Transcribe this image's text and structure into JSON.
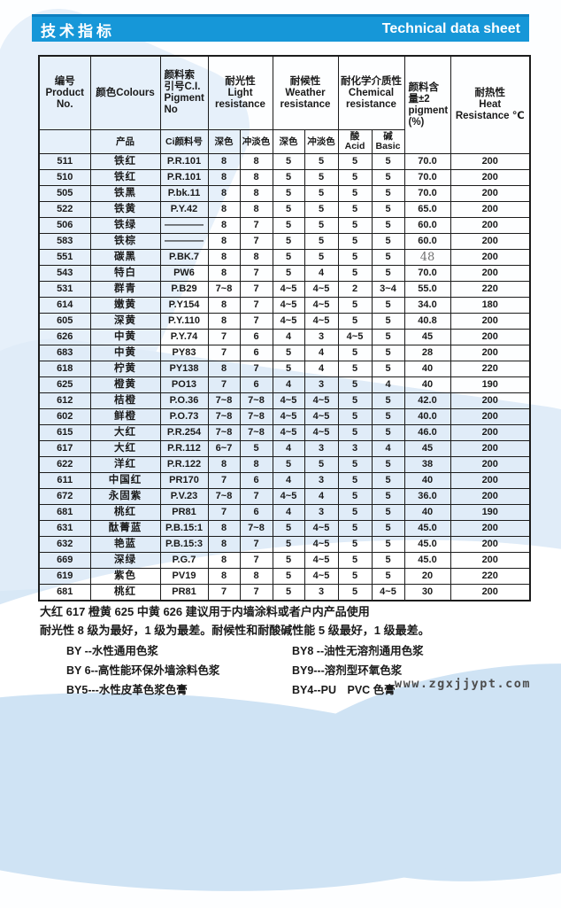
{
  "header": {
    "title_zh": "技术指标",
    "title_en": "Technical data sheet"
  },
  "colors": {
    "accent": "#1697d8",
    "accent_dark": "#0d7fc0",
    "swoosh_light": "#e0ecf8",
    "swoosh_deep": "#cfe3f4"
  },
  "table": {
    "head": {
      "row1": {
        "product_no": "编号\nProduct No.",
        "colours": "颜色Colours",
        "ci": "颜料索\n引号C.I.\nPigment\nNo",
        "light": "耐光性\nLight\nresistance",
        "weather": "耐候性\nWeather\nresistance",
        "chemical": "耐化学介质性\nChemical\nresistance",
        "pigment": "颜料含\n量±2\npigment\n(%)",
        "heat": "耐热性\nHeat Resistance ℃"
      },
      "row2": [
        "",
        "产品",
        "Ci颜料号",
        "深色",
        "冲淡色",
        "深色",
        "冲淡色",
        "酸\nAcid",
        "碱\nBasic"
      ]
    },
    "rows": [
      [
        "511",
        "铁红",
        "P.R.101",
        "8",
        "8",
        "5",
        "5",
        "5",
        "5",
        "70.0",
        "200"
      ],
      [
        "510",
        "铁红",
        "P.R.101",
        "8",
        "8",
        "5",
        "5",
        "5",
        "5",
        "70.0",
        "200"
      ],
      [
        "505",
        "铁黑",
        "P.bk.11",
        "8",
        "8",
        "5",
        "5",
        "5",
        "5",
        "70.0",
        "200"
      ],
      [
        "522",
        "铁黄",
        "P.Y.42",
        "8",
        "8",
        "5",
        "5",
        "5",
        "5",
        "65.0",
        "200"
      ],
      [
        "506",
        "铁绿",
        "————",
        "8",
        "7",
        "5",
        "5",
        "5",
        "5",
        "60.0",
        "200"
      ],
      [
        "583",
        "铁棕",
        "————",
        "8",
        "7",
        "5",
        "5",
        "5",
        "5",
        "60.0",
        "200"
      ],
      [
        "551",
        "碳黑",
        "P.BK.7",
        "8",
        "8",
        "5",
        "5",
        "5",
        "5",
        {
          "v": "48",
          "cls": "hand"
        },
        "200"
      ],
      [
        "543",
        "特白",
        "PW6",
        "8",
        "7",
        "5",
        "4",
        "5",
        "5",
        "70.0",
        "200"
      ],
      [
        "531",
        "群青",
        "P.B29",
        "7~8",
        "7",
        "4~5",
        "4~5",
        "2",
        "3~4",
        "55.0",
        "220"
      ],
      [
        "614",
        "嫩黄",
        "P.Y154",
        "8",
        "7",
        "4~5",
        "4~5",
        "5",
        "5",
        "34.0",
        "180"
      ],
      [
        "605",
        "深黄",
        "P.Y.110",
        "8",
        "7",
        "4~5",
        "4~5",
        "5",
        "5",
        "40.8",
        "200"
      ],
      [
        "626",
        "中黄",
        "P.Y.74",
        "7",
        "6",
        "4",
        "3",
        "4~5",
        "5",
        "45",
        "200"
      ],
      [
        "683",
        "中黄",
        "PY83",
        "7",
        "6",
        "5",
        "4",
        "5",
        "5",
        "28",
        "200"
      ],
      [
        "618",
        "柠黄",
        "PY138",
        "8",
        "7",
        "5",
        "4",
        "5",
        "5",
        "40",
        "220"
      ],
      [
        "625",
        "橙黄",
        "PO13",
        "7",
        "6",
        "4",
        "3",
        "5",
        "4",
        "40",
        "190"
      ],
      [
        "612",
        "桔橙",
        "P.O.36",
        "7~8",
        "7~8",
        "4~5",
        "4~5",
        "5",
        "5",
        "42.0",
        "200"
      ],
      [
        "602",
        "鲜橙",
        "P.O.73",
        "7~8",
        "7~8",
        "4~5",
        "4~5",
        "5",
        "5",
        "40.0",
        "200"
      ],
      [
        "615",
        "大红",
        "P.R.254",
        "7~8",
        "7~8",
        "4~5",
        "4~5",
        "5",
        "5",
        "46.0",
        "200"
      ],
      [
        "617",
        "大红",
        "P.R.112",
        "6~7",
        "5",
        "4",
        "3",
        "3",
        "4",
        "45",
        "200"
      ],
      [
        "622",
        "洋红",
        "P.R.122",
        "8",
        "8",
        "5",
        "5",
        "5",
        "5",
        "38",
        "200"
      ],
      [
        "611",
        "中国红",
        "PR170",
        "7",
        "6",
        "4",
        "3",
        "5",
        "5",
        "40",
        "200"
      ],
      [
        "672",
        "永固紫",
        "P.V.23",
        "7~8",
        "7",
        "4~5",
        "4",
        "5",
        "5",
        "36.0",
        "200"
      ],
      [
        "681",
        "桃红",
        "PR81",
        "7",
        "6",
        "4",
        "3",
        "5",
        "5",
        "40",
        "190"
      ],
      [
        "631",
        "酞菁蓝",
        "P.B.15:1",
        "8",
        "7~8",
        "5",
        "4~5",
        "5",
        "5",
        "45.0",
        "200"
      ],
      [
        "632",
        "艳蓝",
        "P.B.15:3",
        "8",
        "7",
        "5",
        "4~5",
        "5",
        "5",
        "45.0",
        "200"
      ],
      [
        "669",
        "深绿",
        "P.G.7",
        "8",
        "7",
        "5",
        "4~5",
        "5",
        "5",
        "45.0",
        "200"
      ],
      [
        "619",
        "紫色",
        "PV19",
        "8",
        "8",
        "5",
        "4~5",
        "5",
        "5",
        "20",
        "220"
      ],
      [
        "681",
        "桃红",
        "PR81",
        "7",
        "7",
        "5",
        "3",
        "5",
        "4~5",
        "30",
        "200"
      ]
    ]
  },
  "notes": [
    "大红 617 橙黄 625 中黄 626  建议用于内墙涂料或者户内产品使用",
    "耐光性 8 级为最好，1 级为最差。耐候性和耐酸碱性能 5 级最好，1 级最差。"
  ],
  "legend": {
    "left": [
      "BY --水性通用色浆",
      "BY 6--高性能环保外墙涂料色浆",
      "BY5---水性皮革色浆色膏"
    ],
    "right": [
      "BY8 --油性无溶剂通用色浆",
      "BY9---溶剂型环氧色浆",
      "BY4--PU　PVC 色膏"
    ]
  },
  "website": "www.zgxjjypt.com"
}
